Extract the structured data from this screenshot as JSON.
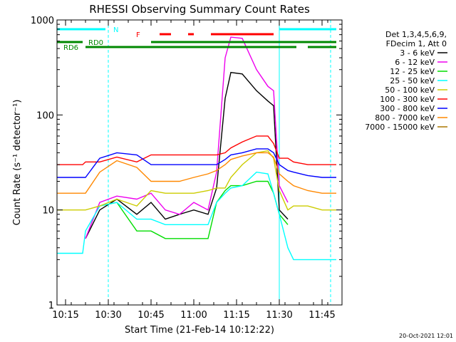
{
  "chart_data": {
    "type": "line",
    "title": "RHESSI Observing Summary Count Rates",
    "xlabel": "Start Time (21-Feb-14 10:12:22)",
    "ylabel": "Count Rate (s⁻¹ detector⁻¹)",
    "xlim": [
      "10:12",
      "11:52"
    ],
    "ylim": [
      1,
      1000
    ],
    "yscale": "log",
    "x_ticks": [
      "10:15",
      "10:30",
      "10:45",
      "11:00",
      "11:15",
      "11:30",
      "11:45"
    ],
    "y_ticks": [
      "1",
      "10",
      "100",
      "1000"
    ],
    "legend_header": [
      "Det 1,3,4,5,6,9,",
      "FDecim 1, Att 0"
    ],
    "legend_placement": "right",
    "timestamp": "20-Oct-2021 12:01",
    "x": [
      "10:12",
      "10:21",
      "10:22",
      "10:27",
      "10:33",
      "10:40",
      "10:45",
      "10:50",
      "10:55",
      "11:00",
      "11:05",
      "11:08",
      "11:11",
      "11:13",
      "11:17",
      "11:22",
      "11:26",
      "11:28",
      "11:30",
      "11:33",
      "11:35",
      "11:40",
      "11:45",
      "11:50"
    ],
    "series": [
      {
        "name": "3 - 6 keV",
        "color": "#000000",
        "values": [
          null,
          null,
          5,
          10,
          13,
          9,
          12,
          8,
          9,
          10,
          9,
          17,
          150,
          280,
          270,
          180,
          140,
          125,
          10,
          8,
          null,
          null,
          null,
          null
        ]
      },
      {
        "name": "6 - 12 keV",
        "color": "#ee00ee",
        "values": [
          null,
          null,
          5,
          12,
          14,
          13,
          15,
          10,
          9,
          12,
          10,
          25,
          400,
          660,
          640,
          300,
          200,
          180,
          18,
          12,
          null,
          null,
          null,
          null
        ]
      },
      {
        "name": "12 - 25 keV",
        "color": "#00dd00",
        "values": [
          null,
          null,
          null,
          11,
          12,
          6,
          6,
          5,
          5,
          5,
          5,
          12,
          16,
          18,
          18,
          20,
          20,
          15,
          9,
          7,
          null,
          null,
          null,
          null
        ]
      },
      {
        "name": "25 - 50 keV",
        "color": "#00ffff",
        "values": [
          3.5,
          3.5,
          6,
          11,
          12,
          8,
          8,
          7,
          7,
          7,
          7,
          12,
          15,
          17,
          18,
          25,
          24,
          15,
          9,
          4,
          3,
          3,
          3,
          3
        ]
      },
      {
        "name": "50 - 100 keV",
        "color": "#cccc00",
        "values": [
          10,
          10,
          10,
          11,
          13,
          11,
          16,
          15,
          15,
          15,
          16,
          17,
          17,
          22,
          30,
          40,
          42,
          35,
          16,
          10,
          11,
          11,
          10,
          10
        ]
      },
      {
        "name": "100 - 300 keV",
        "color": "#ff0000",
        "values": [
          30,
          30,
          32,
          32,
          36,
          32,
          38,
          38,
          38,
          38,
          38,
          38,
          40,
          45,
          52,
          60,
          60,
          50,
          35,
          35,
          32,
          30,
          30,
          30
        ]
      },
      {
        "name": "300 - 800 keV",
        "color": "#0000ff",
        "values": [
          22,
          22,
          22,
          35,
          40,
          38,
          30,
          30,
          30,
          30,
          30,
          30,
          34,
          38,
          40,
          44,
          44,
          40,
          30,
          26,
          25,
          23,
          22,
          22
        ]
      },
      {
        "name": "800 - 7000 keV",
        "color": "#ff8800",
        "values": [
          15,
          15,
          15,
          25,
          33,
          28,
          20,
          20,
          20,
          22,
          24,
          26,
          30,
          34,
          37,
          40,
          40,
          36,
          24,
          20,
          18,
          16,
          15,
          15
        ]
      },
      {
        "name": "7000 - 15000 keV",
        "color": "#aa7700",
        "values": [
          null,
          null,
          null,
          null,
          null,
          null,
          null,
          null,
          null,
          null,
          null,
          null,
          null,
          null,
          null,
          null,
          null,
          null,
          null,
          null,
          null,
          null,
          null,
          null
        ]
      }
    ],
    "flags": [
      {
        "label": "N",
        "color": "#00ffff",
        "segments": [
          [
            "10:12",
            "10:29"
          ],
          [
            "11:30",
            "11:50"
          ]
        ]
      },
      {
        "label": "F",
        "color": "#ff0000",
        "segments": [
          [
            "10:48",
            "10:52"
          ],
          [
            "10:58",
            "11:00"
          ],
          [
            "11:06",
            "11:28"
          ]
        ]
      },
      {
        "label": "RD0",
        "color": "#008800",
        "segments": [
          [
            "10:12",
            "10:21"
          ],
          [
            "10:45",
            "11:50"
          ]
        ]
      },
      {
        "label": "RD6",
        "color": "#008800",
        "segments": [
          [
            "10:22",
            "10:45"
          ],
          [
            "10:45",
            "11:36"
          ],
          [
            "11:40",
            "11:50"
          ]
        ]
      }
    ],
    "vlines": [
      {
        "time": "10:30",
        "color": "#00ffff",
        "style": "dashed"
      },
      {
        "time": "11:30",
        "color": "#00ffff",
        "style": "solid"
      },
      {
        "time": "11:48",
        "color": "#00ffff",
        "style": "dashed"
      }
    ]
  }
}
